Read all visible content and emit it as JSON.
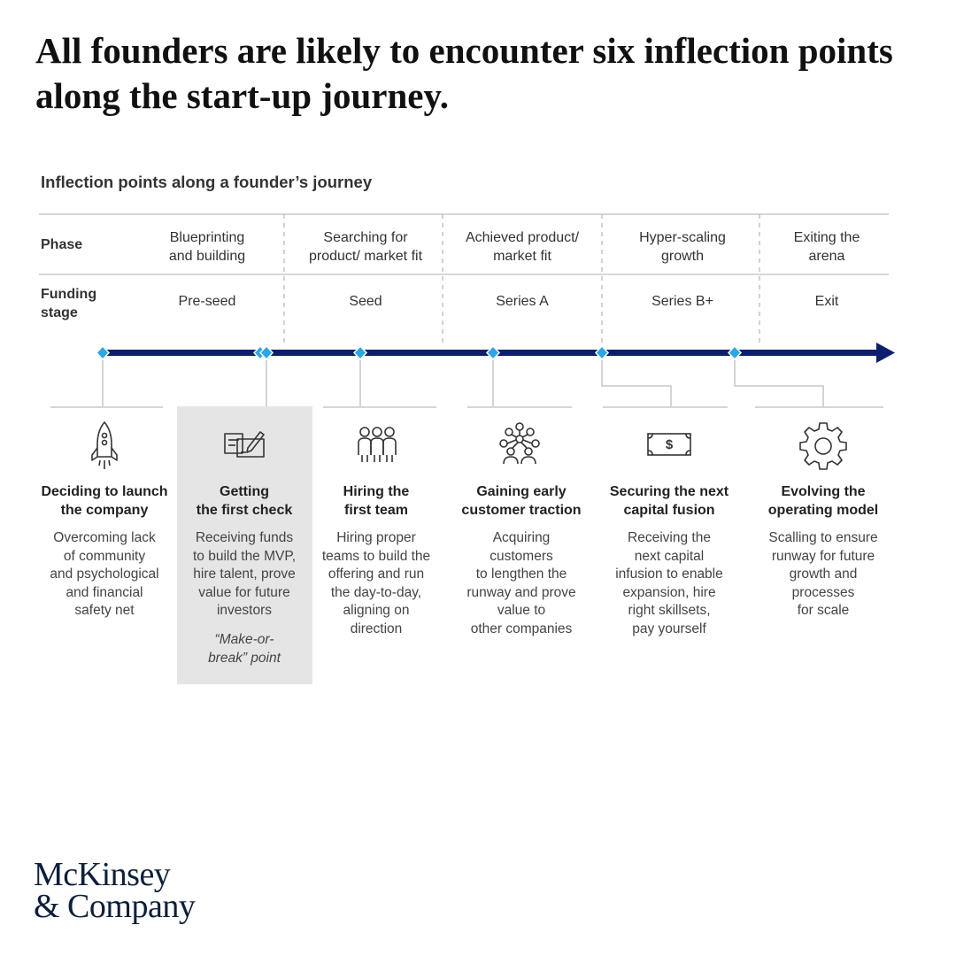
{
  "headline": "All founders are likely to encounter six inflection points along the start-up journey.",
  "subtitle": "Inflection points along a founder’s journey",
  "row_labels": {
    "phase": "Phase",
    "funding_line1": "Funding",
    "funding_line2": "stage"
  },
  "phases": [
    {
      "line1": "Blueprinting",
      "line2": "and building",
      "funding": "Pre-seed"
    },
    {
      "line1": "Searching for",
      "line2": "product/ market fit",
      "funding": "Seed"
    },
    {
      "line1": "Achieved product/",
      "line2": "market fit",
      "funding": "Series A"
    },
    {
      "line1": "Hyper-scaling",
      "line2": "growth",
      "funding": "Series B+"
    },
    {
      "line1": "Exiting the",
      "line2": "arena",
      "funding": "Exit"
    }
  ],
  "inflection_points": [
    {
      "icon": "rocket-icon",
      "title1": "Deciding to launch",
      "title2": "the company",
      "desc": [
        "Overcoming lack",
        "of community",
        "and psychological",
        "and financial",
        "safety net"
      ]
    },
    {
      "icon": "check-signing-icon",
      "title1": "Getting",
      "title2": "the first check",
      "desc": [
        "Receiving funds",
        "to build the MVP,",
        "hire talent, prove",
        "value for future",
        "investors"
      ],
      "note": [
        "“Make-or-",
        "break” point"
      ]
    },
    {
      "icon": "team-icon",
      "title1": "Hiring the",
      "title2": "first team",
      "desc": [
        "Hiring proper",
        "teams to build the",
        "offering and run",
        "the day-to-day,",
        "aligning on",
        "direction"
      ]
    },
    {
      "icon": "network-icon",
      "title1": "Gaining early",
      "title2": "customer traction",
      "desc": [
        "Acquiring",
        "customers",
        "to lengthen the",
        "runway and prove",
        "value to",
        "other companies"
      ]
    },
    {
      "icon": "dollar-bill-icon",
      "title1": "Securing the next",
      "title2": "capital fusion",
      "desc": [
        "Receiving the",
        "next capital",
        "infusion to enable",
        "expansion, hire",
        "right skillsets,",
        "pay yourself"
      ]
    },
    {
      "icon": "gear-icon",
      "title1": "Evolving the",
      "title2": "operating model",
      "desc": [
        "Scalling to ensure",
        "runway for future",
        "growth and",
        "processes",
        "for scale"
      ]
    }
  ],
  "brand": {
    "line1": "McKinsey",
    "line2": "& Company"
  },
  "colors": {
    "timeline": "#0b1f6e",
    "marker": "#2aa7e8",
    "highlight": "#e5e5e5",
    "rule": "#c8c8c8"
  }
}
